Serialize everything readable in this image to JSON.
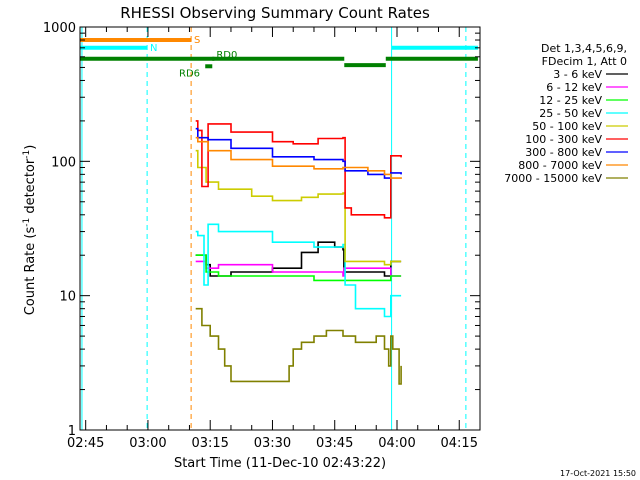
{
  "chart_data": {
    "type": "line",
    "title": "RHESSI Observing Summary Count Rates",
    "xlabel": "Start Time (11-Dec-10 02:43:22)",
    "ylabel_main": "Count Rate (s",
    "ylabel_sup1": "-1",
    "ylabel_mid": " detector",
    "ylabel_sup2": "-1",
    "ylabel_end": ")",
    "yscale": "log",
    "ylim": [
      1,
      1000
    ],
    "xlim_minutes": [
      -1.37,
      95.0
    ],
    "x_ticks": [
      {
        "t": 0,
        "label": "02:45"
      },
      {
        "t": 15,
        "label": "03:00"
      },
      {
        "t": 30,
        "label": "03:15"
      },
      {
        "t": 45,
        "label": "03:30"
      },
      {
        "t": 60,
        "label": "03:45"
      },
      {
        "t": 75,
        "label": "04:00"
      },
      {
        "t": 90,
        "label": "04:15"
      }
    ],
    "y_ticks": [
      {
        "v": 1,
        "label": "1"
      },
      {
        "v": 10,
        "label": "10"
      },
      {
        "v": 100,
        "label": "100"
      },
      {
        "v": 1000,
        "label": "1000"
      }
    ],
    "legend_header": [
      "Det 1,3,4,5,6,9,",
      "FDecim 1, Att 0"
    ],
    "series": [
      {
        "name": "3 - 6 keV",
        "color": "#000000",
        "points": [
          [
            26.5,
            20
          ],
          [
            29,
            17
          ],
          [
            30,
            14
          ],
          [
            35,
            15
          ],
          [
            45,
            16
          ],
          [
            52,
            21
          ],
          [
            56,
            25
          ],
          [
            60,
            23
          ],
          [
            62,
            22
          ],
          [
            62.2,
            15
          ],
          [
            72,
            14
          ],
          [
            73.5,
            18
          ],
          [
            76,
            18
          ]
        ]
      },
      {
        "name": "6 - 12 keV",
        "color": "#ff00ff",
        "points": [
          [
            26.5,
            18
          ],
          [
            29,
            16
          ],
          [
            32,
            17
          ],
          [
            45,
            15
          ],
          [
            55,
            15
          ],
          [
            62,
            14
          ],
          [
            62.2,
            16
          ],
          [
            72,
            16
          ],
          [
            73.5,
            14
          ],
          [
            76,
            14
          ]
        ]
      },
      {
        "name": "12 - 25 keV",
        "color": "#00ff00",
        "points": [
          [
            26.5,
            20
          ],
          [
            29,
            15
          ],
          [
            32,
            14
          ],
          [
            45,
            14
          ],
          [
            55,
            13
          ],
          [
            62,
            13
          ],
          [
            62.2,
            13
          ],
          [
            72,
            13
          ],
          [
            73.5,
            14
          ],
          [
            76,
            14
          ]
        ]
      },
      {
        "name": "25 - 50 keV",
        "color": "#00ffff",
        "points": [
          [
            26.5,
            30
          ],
          [
            27,
            28
          ],
          [
            28.5,
            12
          ],
          [
            29.5,
            34
          ],
          [
            32,
            30
          ],
          [
            45,
            25
          ],
          [
            55,
            23
          ],
          [
            62,
            24
          ],
          [
            62.5,
            12
          ],
          [
            65,
            8
          ],
          [
            72,
            7
          ],
          [
            73.5,
            10
          ],
          [
            76,
            10
          ]
        ]
      },
      {
        "name": "50 - 100 keV",
        "color": "#cccc00",
        "points": [
          [
            26.5,
            120
          ],
          [
            27,
            90
          ],
          [
            29,
            70
          ],
          [
            32,
            62
          ],
          [
            40,
            55
          ],
          [
            45,
            51
          ],
          [
            52,
            54
          ],
          [
            56,
            57
          ],
          [
            62,
            58
          ],
          [
            62.5,
            18
          ],
          [
            72,
            17
          ],
          [
            73.5,
            18
          ],
          [
            76,
            18
          ]
        ]
      },
      {
        "name": "100 - 300 keV",
        "color": "#ff0000",
        "points": [
          [
            26.5,
            200
          ],
          [
            27,
            170
          ],
          [
            28,
            65
          ],
          [
            29.5,
            190
          ],
          [
            35,
            165
          ],
          [
            45,
            140
          ],
          [
            50,
            135
          ],
          [
            56,
            148
          ],
          [
            62,
            150
          ],
          [
            62.5,
            45
          ],
          [
            64,
            40
          ],
          [
            72,
            38
          ],
          [
            73.5,
            110
          ],
          [
            76,
            107
          ]
        ]
      },
      {
        "name": "300 - 800 keV",
        "color": "#0000ff",
        "points": [
          [
            26.5,
            175
          ],
          [
            27,
            150
          ],
          [
            29.5,
            145
          ],
          [
            35,
            125
          ],
          [
            45,
            108
          ],
          [
            55,
            103
          ],
          [
            62,
            100
          ],
          [
            62.5,
            85
          ],
          [
            68,
            80
          ],
          [
            72,
            75
          ],
          [
            73.5,
            82
          ],
          [
            76,
            80
          ]
        ]
      },
      {
        "name": "800 - 7000 keV",
        "color": "#ff8800",
        "points": [
          [
            26.5,
            150
          ],
          [
            27,
            140
          ],
          [
            29.5,
            120
          ],
          [
            35,
            103
          ],
          [
            45,
            92
          ],
          [
            55,
            88
          ],
          [
            62,
            90
          ],
          [
            62.5,
            90
          ],
          [
            68,
            85
          ],
          [
            72,
            80
          ],
          [
            73.5,
            75
          ],
          [
            76,
            74
          ]
        ]
      },
      {
        "name": "7000 - 15000 keV",
        "color": "#808000",
        "points": [
          [
            26.5,
            8
          ],
          [
            28,
            6
          ],
          [
            30,
            5
          ],
          [
            32,
            4
          ],
          [
            33.5,
            3
          ],
          [
            35,
            2.3
          ],
          [
            40,
            2.3
          ],
          [
            45,
            2.3
          ],
          [
            47,
            2.3
          ],
          [
            49,
            3
          ],
          [
            50,
            4
          ],
          [
            52,
            4.5
          ],
          [
            55,
            5
          ],
          [
            58,
            5.5
          ],
          [
            60,
            5.5
          ],
          [
            62,
            5
          ],
          [
            65,
            4.5
          ],
          [
            70,
            5
          ],
          [
            72,
            4
          ],
          [
            73,
            3
          ],
          [
            73.5,
            5
          ],
          [
            74,
            4
          ],
          [
            75.5,
            2.2
          ],
          [
            76,
            3
          ]
        ]
      }
    ],
    "flag_bars": [
      {
        "label": "S",
        "color": "#ff8800",
        "t0": -1.37,
        "t1": 25.5,
        "level": 800,
        "label_t": 25.6
      },
      {
        "label": "N",
        "color": "#00ffff",
        "t0": -1.37,
        "t1": 14.8,
        "level": 700,
        "label_t": 15.0
      },
      {
        "label": "",
        "color": "#00ffff",
        "t0": 73.8,
        "t1": 94.5,
        "level": 700,
        "label_t": 0
      },
      {
        "label": "",
        "color": "#008000",
        "t0": -1.37,
        "t1": 62.3,
        "level": 580,
        "label_t": 0
      },
      {
        "label": "",
        "color": "#008000",
        "t0": 62.3,
        "t1": 72.3,
        "level": 520,
        "label_t": 0
      },
      {
        "label": "",
        "color": "#008000",
        "t0": 72.3,
        "t1": 94.5,
        "level": 580,
        "label_t": 0
      },
      {
        "label": "RD6",
        "color": "#008000",
        "t0": 28.8,
        "t1": 30.5,
        "level": 510,
        "label_t": 22.0
      },
      {
        "label": "RD0",
        "color": "#008000",
        "t0": 30.5,
        "t1": 31.0,
        "level": 580,
        "label_t": 31.0
      }
    ],
    "vlines": [
      {
        "t": -0.9,
        "color": "#00ffff",
        "dash": false
      },
      {
        "t": 14.8,
        "color": "#00ffff",
        "dash": true
      },
      {
        "t": 25.4,
        "color": "#ff8800",
        "dash": true
      },
      {
        "t": 73.7,
        "color": "#00ffff",
        "dash": false
      },
      {
        "t": 91.6,
        "color": "#00ffff",
        "dash": true
      }
    ],
    "footer": "17-Oct-2021 15:50"
  }
}
